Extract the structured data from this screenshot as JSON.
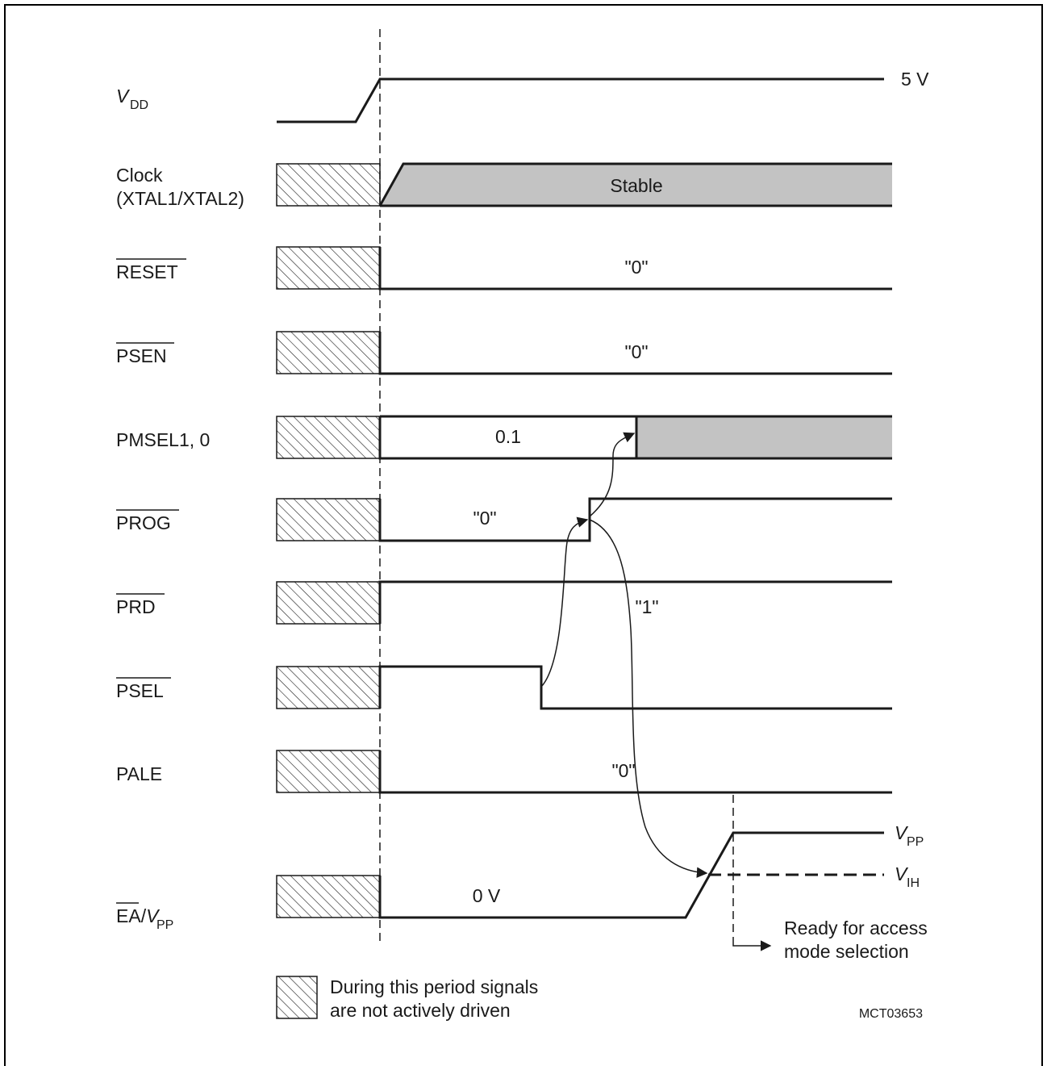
{
  "signals": [
    {
      "id": "vdd",
      "label": "V",
      "sub": "DD",
      "overbar": false
    },
    {
      "id": "clock",
      "label": "Clock",
      "label2": "(XTAL1/XTAL2)",
      "overbar": false
    },
    {
      "id": "reset",
      "label": "RESET",
      "overbar": true
    },
    {
      "id": "psen",
      "label": "PSEN",
      "overbar": true
    },
    {
      "id": "pmsel",
      "label": "PMSEL1, 0",
      "overbar": false
    },
    {
      "id": "prog",
      "label": "PROG",
      "overbar": true
    },
    {
      "id": "prd",
      "label": "PRD",
      "overbar": true
    },
    {
      "id": "psel",
      "label": "PSEL",
      "overbar": true
    },
    {
      "id": "pale",
      "label": "PALE",
      "overbar": false
    },
    {
      "id": "ea",
      "label_bar": "EA",
      "label_slash": "/",
      "label_v": "V",
      "sub": "PP"
    }
  ],
  "annotations": {
    "vdd_level": "5 V",
    "clock_state": "Stable",
    "reset_value": "\"0\"",
    "psen_value": "\"0\"",
    "pmsel_value": "0.1",
    "prog_value": "\"0\"",
    "prd_value": "\"1\"",
    "pale_value": "\"0\"",
    "ea_value": "0 V",
    "vpp_label": "V",
    "vpp_sub": "PP",
    "vih_label": "V",
    "vih_sub": "IH",
    "ready_line1": "Ready for access",
    "ready_line2": "mode selection"
  },
  "legend": {
    "line1": "During this period signals",
    "line2": "are not actively driven"
  },
  "figure_code": "MCT03653",
  "colors": {
    "line": "#1a1a1a",
    "fill_gray": "#c3c3c3",
    "border": "#000000"
  }
}
